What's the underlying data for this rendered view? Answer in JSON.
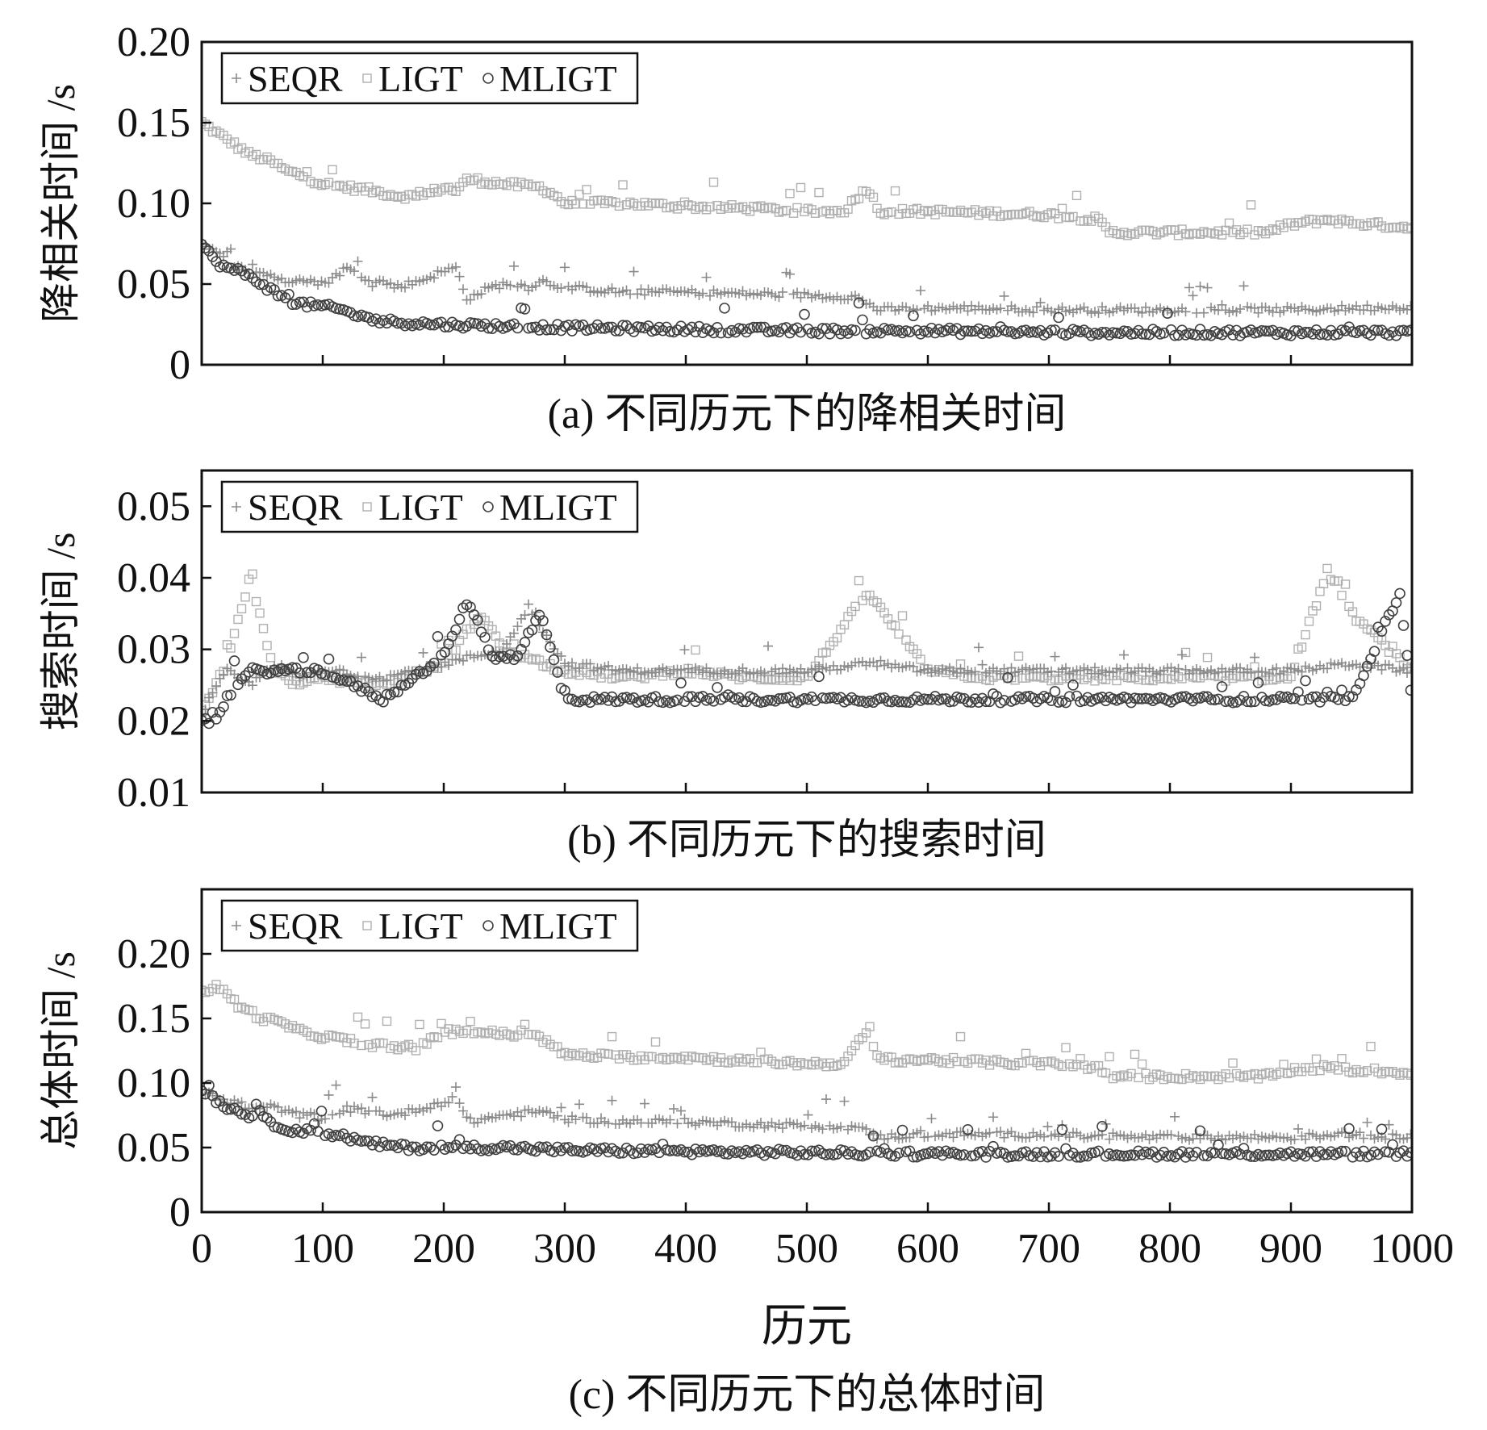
{
  "legend": {
    "series_names": [
      "SEQR",
      "LIGT",
      "MLIGT"
    ]
  },
  "colors": {
    "SEQR": "#8a8a8a",
    "LIGT": "#b0b0b0",
    "MLIGT": "#404040",
    "axis": "#111111"
  },
  "x_title": "历元",
  "chart_data": [
    {
      "type": "scatter",
      "id": "a",
      "caption": "(a) 不同历元下的降相关时间",
      "ylabel": "降相关时间 /s",
      "xlim": [
        0,
        1000
      ],
      "ylim": [
        0,
        0.2
      ],
      "xticks": [
        0,
        100,
        200,
        300,
        400,
        500,
        600,
        700,
        800,
        900,
        1000
      ],
      "yticks": [
        0,
        0.05,
        0.1,
        0.15,
        0.2
      ],
      "ytick_labels": [
        "0",
        "0.05",
        "0.10",
        "0.15",
        "0.20"
      ],
      "show_xtick_labels": false,
      "legend_position": "top-left",
      "series": [
        {
          "name": "SEQR",
          "marker": "plus",
          "x": [
            0,
            10,
            20,
            30,
            40,
            50,
            60,
            70,
            80,
            90,
            100,
            110,
            120,
            130,
            140,
            150,
            160,
            170,
            180,
            190,
            200,
            210,
            220,
            230,
            240,
            250,
            260,
            270,
            280,
            290,
            300,
            350,
            400,
            450,
            500,
            540,
            560,
            600,
            650,
            700,
            750,
            800,
            850,
            900,
            950,
            1000
          ],
          "y": [
            0.075,
            0.07,
            0.065,
            0.06,
            0.058,
            0.057,
            0.055,
            0.05,
            0.055,
            0.052,
            0.05,
            0.055,
            0.06,
            0.055,
            0.05,
            0.052,
            0.048,
            0.05,
            0.052,
            0.055,
            0.058,
            0.06,
            0.04,
            0.045,
            0.048,
            0.05,
            0.05,
            0.048,
            0.052,
            0.05,
            0.048,
            0.045,
            0.045,
            0.044,
            0.043,
            0.042,
            0.034,
            0.035,
            0.035,
            0.034,
            0.034,
            0.034,
            0.034,
            0.034,
            0.035,
            0.036
          ]
        },
        {
          "name": "LIGT",
          "marker": "square",
          "x": [
            0,
            10,
            20,
            30,
            40,
            50,
            60,
            70,
            80,
            90,
            100,
            120,
            140,
            160,
            180,
            200,
            210,
            220,
            250,
            280,
            290,
            300,
            350,
            400,
            450,
            500,
            530,
            550,
            560,
            600,
            650,
            700,
            740,
            750,
            800,
            850,
            880,
            900,
            930,
            950,
            1000
          ],
          "y": [
            0.15,
            0.145,
            0.14,
            0.135,
            0.13,
            0.128,
            0.125,
            0.12,
            0.118,
            0.115,
            0.112,
            0.11,
            0.108,
            0.105,
            0.104,
            0.11,
            0.108,
            0.115,
            0.112,
            0.11,
            0.106,
            0.1,
            0.1,
            0.098,
            0.097,
            0.095,
            0.095,
            0.11,
            0.095,
            0.095,
            0.094,
            0.093,
            0.09,
            0.082,
            0.082,
            0.082,
            0.082,
            0.087,
            0.09,
            0.088,
            0.085
          ]
        },
        {
          "name": "MLIGT",
          "marker": "circle",
          "x": [
            0,
            10,
            20,
            30,
            40,
            50,
            60,
            70,
            80,
            90,
            100,
            110,
            120,
            130,
            140,
            150,
            170,
            200,
            250,
            300,
            400,
            500,
            600,
            700,
            800,
            900,
            950,
            1000
          ],
          "y": [
            0.075,
            0.065,
            0.06,
            0.058,
            0.055,
            0.05,
            0.045,
            0.04,
            0.038,
            0.037,
            0.036,
            0.035,
            0.033,
            0.03,
            0.028,
            0.027,
            0.026,
            0.025,
            0.024,
            0.023,
            0.022,
            0.021,
            0.021,
            0.02,
            0.02,
            0.02,
            0.02,
            0.02
          ]
        }
      ]
    },
    {
      "type": "scatter",
      "id": "b",
      "caption": "(b) 不同历元下的搜索时间",
      "ylabel": "搜索时间 /s",
      "xlim": [
        0,
        1000
      ],
      "ylim": [
        0.01,
        0.055
      ],
      "xticks": [
        0,
        100,
        200,
        300,
        400,
        500,
        600,
        700,
        800,
        900,
        1000
      ],
      "yticks": [
        0.01,
        0.02,
        0.03,
        0.04,
        0.05
      ],
      "ytick_labels": [
        "0.01",
        "0.02",
        "0.03",
        "0.04",
        "0.05"
      ],
      "show_xtick_labels": false,
      "legend_position": "top-left",
      "series": [
        {
          "name": "SEQR",
          "marker": "plus",
          "x": [
            0,
            20,
            40,
            60,
            80,
            100,
            150,
            200,
            250,
            270,
            300,
            350,
            400,
            450,
            500,
            550,
            600,
            650,
            700,
            750,
            800,
            850,
            900,
            950,
            1000
          ],
          "y": [
            0.021,
            0.027,
            0.025,
            0.028,
            0.026,
            0.027,
            0.026,
            0.028,
            0.03,
            0.036,
            0.028,
            0.027,
            0.027,
            0.027,
            0.027,
            0.028,
            0.027,
            0.027,
            0.027,
            0.027,
            0.027,
            0.027,
            0.027,
            0.028,
            0.027
          ]
        },
        {
          "name": "LIGT",
          "marker": "square",
          "x": [
            0,
            20,
            40,
            60,
            80,
            100,
            150,
            200,
            230,
            250,
            300,
            350,
            400,
            450,
            500,
            550,
            600,
            650,
            700,
            750,
            800,
            850,
            900,
            930,
            950,
            1000
          ],
          "y": [
            0.021,
            0.028,
            0.04,
            0.027,
            0.025,
            0.026,
            0.025,
            0.028,
            0.035,
            0.03,
            0.027,
            0.026,
            0.027,
            0.026,
            0.026,
            0.038,
            0.027,
            0.026,
            0.026,
            0.026,
            0.026,
            0.026,
            0.026,
            0.041,
            0.035,
            0.027
          ]
        },
        {
          "name": "MLIGT",
          "marker": "circle",
          "x": [
            0,
            10,
            20,
            40,
            60,
            80,
            100,
            150,
            200,
            220,
            240,
            260,
            280,
            300,
            350,
            400,
            450,
            500,
            550,
            600,
            650,
            700,
            750,
            800,
            850,
            900,
            950,
            990,
            1000
          ],
          "y": [
            0.02,
            0.02,
            0.023,
            0.027,
            0.027,
            0.027,
            0.027,
            0.023,
            0.029,
            0.037,
            0.029,
            0.029,
            0.035,
            0.023,
            0.023,
            0.023,
            0.023,
            0.023,
            0.023,
            0.023,
            0.023,
            0.023,
            0.023,
            0.023,
            0.023,
            0.023,
            0.023,
            0.038,
            0.023
          ]
        }
      ]
    },
    {
      "type": "scatter",
      "id": "c",
      "caption": "(c) 不同历元下的总体时间",
      "ylabel": "总体时间 /s",
      "xlim": [
        0,
        1000
      ],
      "ylim": [
        0,
        0.25
      ],
      "xticks": [
        0,
        100,
        200,
        300,
        400,
        500,
        600,
        700,
        800,
        900,
        1000
      ],
      "xtick_labels": [
        "0",
        "100",
        "200",
        "300",
        "400",
        "500",
        "600",
        "700",
        "800",
        "900",
        "1000"
      ],
      "yticks": [
        0,
        0.05,
        0.1,
        0.15,
        0.2
      ],
      "ytick_labels": [
        "0",
        "0.05",
        "0.10",
        "0.15",
        "0.20"
      ],
      "show_xtick_labels": true,
      "legend_position": "top-left",
      "series": [
        {
          "name": "SEQR",
          "marker": "plus",
          "x": [
            0,
            10,
            20,
            30,
            40,
            50,
            60,
            70,
            80,
            90,
            100,
            120,
            140,
            160,
            180,
            200,
            210,
            220,
            250,
            280,
            300,
            350,
            400,
            450,
            500,
            540,
            560,
            600,
            650,
            700,
            750,
            800,
            850,
            900,
            950,
            1000
          ],
          "y": [
            0.095,
            0.09,
            0.085,
            0.085,
            0.08,
            0.08,
            0.082,
            0.078,
            0.075,
            0.075,
            0.072,
            0.08,
            0.078,
            0.075,
            0.08,
            0.085,
            0.09,
            0.07,
            0.075,
            0.078,
            0.072,
            0.07,
            0.07,
            0.068,
            0.067,
            0.066,
            0.058,
            0.06,
            0.06,
            0.06,
            0.058,
            0.058,
            0.058,
            0.058,
            0.06,
            0.058
          ]
        },
        {
          "name": "LIGT",
          "marker": "square",
          "x": [
            0,
            10,
            20,
            30,
            40,
            50,
            60,
            70,
            80,
            90,
            100,
            120,
            140,
            160,
            180,
            200,
            220,
            250,
            280,
            300,
            350,
            400,
            450,
            500,
            530,
            550,
            560,
            600,
            650,
            700,
            740,
            750,
            800,
            850,
            880,
            900,
            930,
            950,
            1000
          ],
          "y": [
            0.17,
            0.175,
            0.17,
            0.16,
            0.155,
            0.15,
            0.148,
            0.145,
            0.14,
            0.138,
            0.136,
            0.133,
            0.13,
            0.128,
            0.127,
            0.14,
            0.14,
            0.138,
            0.135,
            0.122,
            0.12,
            0.12,
            0.117,
            0.115,
            0.115,
            0.14,
            0.118,
            0.118,
            0.116,
            0.115,
            0.112,
            0.105,
            0.105,
            0.105,
            0.105,
            0.11,
            0.112,
            0.11,
            0.108
          ]
        },
        {
          "name": "MLIGT",
          "marker": "circle",
          "x": [
            0,
            10,
            20,
            30,
            40,
            50,
            60,
            70,
            80,
            90,
            100,
            110,
            120,
            130,
            140,
            150,
            170,
            200,
            250,
            300,
            400,
            500,
            600,
            700,
            800,
            900,
            950,
            1000
          ],
          "y": [
            0.095,
            0.088,
            0.082,
            0.078,
            0.075,
            0.072,
            0.068,
            0.065,
            0.063,
            0.062,
            0.06,
            0.06,
            0.058,
            0.055,
            0.053,
            0.052,
            0.05,
            0.05,
            0.05,
            0.048,
            0.047,
            0.046,
            0.045,
            0.045,
            0.045,
            0.045,
            0.045,
            0.045
          ]
        }
      ]
    }
  ]
}
